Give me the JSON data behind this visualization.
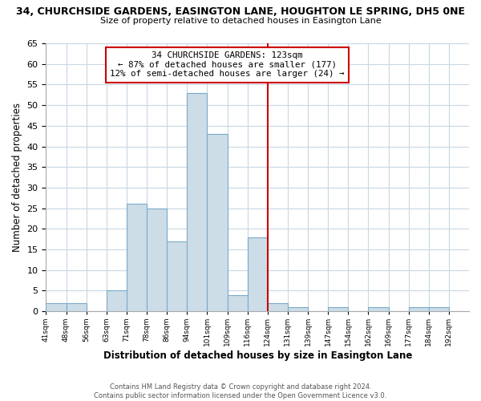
{
  "title": "34, CHURCHSIDE GARDENS, EASINGTON LANE, HOUGHTON LE SPRING, DH5 0NE",
  "subtitle": "Size of property relative to detached houses in Easington Lane",
  "xlabel": "Distribution of detached houses by size in Easington Lane",
  "ylabel": "Number of detached properties",
  "bin_labels": [
    "41sqm",
    "48sqm",
    "56sqm",
    "63sqm",
    "71sqm",
    "78sqm",
    "86sqm",
    "94sqm",
    "101sqm",
    "109sqm",
    "116sqm",
    "124sqm",
    "131sqm",
    "139sqm",
    "147sqm",
    "154sqm",
    "162sqm",
    "169sqm",
    "177sqm",
    "184sqm",
    "192sqm"
  ],
  "bar_heights": [
    2,
    2,
    0,
    5,
    26,
    25,
    17,
    53,
    43,
    4,
    18,
    2,
    1,
    0,
    1,
    0,
    1,
    0,
    1,
    1,
    0
  ],
  "bar_color": "#ccdde8",
  "bar_edgecolor": "#7aaac8",
  "ylim": [
    0,
    65
  ],
  "yticks": [
    0,
    5,
    10,
    15,
    20,
    25,
    30,
    35,
    40,
    45,
    50,
    55,
    60,
    65
  ],
  "vline_color": "#cc0000",
  "annotation_title": "34 CHURCHSIDE GARDENS: 123sqm",
  "annotation_line1": "← 87% of detached houses are smaller (177)",
  "annotation_line2": "12% of semi-detached houses are larger (24) →",
  "annotation_box_edgecolor": "#cc0000",
  "footer_line1": "Contains HM Land Registry data © Crown copyright and database right 2024.",
  "footer_line2": "Contains public sector information licensed under the Open Government Licence v3.0.",
  "background_color": "#ffffff",
  "grid_color": "#c8d8e4"
}
